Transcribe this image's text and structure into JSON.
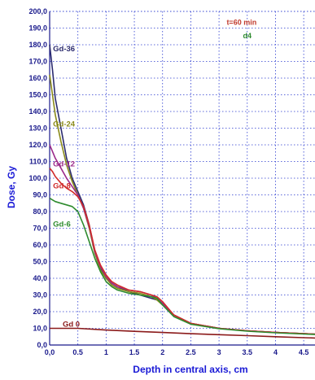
{
  "chart_data": {
    "type": "line",
    "title": "",
    "xlabel": "Depth in central axis, cm",
    "ylabel": "Dose, Gy",
    "xlim": [
      0,
      4.7
    ],
    "ylim": [
      0,
      200
    ],
    "x_ticks": [
      "0,0",
      "0.5",
      "1",
      "1.5",
      "2",
      "2.5",
      "3",
      "3.5",
      "4",
      "4.5"
    ],
    "x_tick_values": [
      0,
      0.5,
      1,
      1.5,
      2,
      2.5,
      3,
      3.5,
      4,
      4.5
    ],
    "y_ticks": [
      "0,0",
      "10,0",
      "20,0",
      "30,0",
      "40,0",
      "50,0",
      "60,0",
      "70,0",
      "80,0",
      "90,0",
      "100,0",
      "110,0",
      "120,0",
      "130,0",
      "140,0",
      "150,0",
      "160,0",
      "170,0",
      "180,0",
      "190,0",
      "200,0"
    ],
    "y_tick_values": [
      0,
      10,
      20,
      30,
      40,
      50,
      60,
      70,
      80,
      90,
      100,
      110,
      120,
      130,
      140,
      150,
      160,
      170,
      180,
      190,
      200
    ],
    "grid": true,
    "annotations": [
      {
        "text": "t=60 min",
        "color": "#c0392b",
        "x": 3.4,
        "y": 192
      },
      {
        "text": "d4",
        "color": "#2e8b2e",
        "x": 3.5,
        "y": 184
      }
    ],
    "series": [
      {
        "name": "Gd-36",
        "color": "#2b2b6e",
        "label_x": 0.06,
        "label_y": 176,
        "x": [
          0,
          0.05,
          0.1,
          0.2,
          0.3,
          0.4,
          0.5,
          0.6,
          0.7,
          0.8,
          0.9,
          1.0,
          1.1,
          1.2,
          1.4,
          1.6,
          1.8,
          1.9,
          2.0,
          2.2,
          2.5,
          3.0,
          3.5,
          4.0,
          4.7
        ],
        "y": [
          180,
          165,
          148,
          130,
          112,
          100,
          92,
          84,
          72,
          56,
          46,
          40,
          37,
          35,
          32,
          30,
          28,
          27,
          25,
          18,
          13,
          10,
          8.5,
          7.5,
          6.5
        ]
      },
      {
        "name": "Gd-24",
        "color": "#8a8a1a",
        "label_x": 0.06,
        "label_y": 131,
        "x": [
          0,
          0.05,
          0.1,
          0.2,
          0.3,
          0.4,
          0.5,
          0.6,
          0.7,
          0.8,
          0.9,
          1.0,
          1.1,
          1.2,
          1.4,
          1.6,
          1.8,
          1.9,
          2.0,
          2.2,
          2.5,
          3.0,
          3.5,
          4.0,
          4.7
        ],
        "y": [
          162,
          150,
          138,
          122,
          108,
          98,
          90,
          82,
          70,
          55,
          45,
          40,
          36,
          34,
          32,
          31,
          29,
          27,
          24,
          18,
          13,
          10,
          8.5,
          7.5,
          6.5
        ]
      },
      {
        "name": "Gd-12",
        "color": "#9b2a8a",
        "label_x": 0.06,
        "label_y": 107,
        "x": [
          0,
          0.05,
          0.1,
          0.2,
          0.3,
          0.4,
          0.5,
          0.6,
          0.7,
          0.8,
          0.9,
          1.0,
          1.1,
          1.2,
          1.4,
          1.6,
          1.8,
          1.9,
          2.0,
          2.2,
          2.5,
          3.0,
          3.5,
          4.0,
          4.7
        ],
        "y": [
          120,
          116,
          112,
          106,
          100,
          95,
          90,
          82,
          71,
          56,
          47,
          41,
          37,
          35,
          33,
          32,
          30,
          28,
          25,
          18,
          13,
          10,
          8.5,
          7.5,
          6.5
        ]
      },
      {
        "name": "Gd-8",
        "color": "#d02b2b",
        "label_x": 0.06,
        "label_y": 94,
        "x": [
          0,
          0.05,
          0.1,
          0.2,
          0.3,
          0.4,
          0.5,
          0.6,
          0.7,
          0.8,
          0.9,
          1.0,
          1.1,
          1.2,
          1.4,
          1.6,
          1.8,
          1.9,
          2.0,
          2.2,
          2.5,
          3.0,
          3.5,
          4.0,
          4.7
        ],
        "y": [
          106,
          104,
          101,
          97,
          94,
          92,
          89,
          83,
          72,
          57,
          48,
          42,
          38,
          36,
          33,
          32,
          30,
          29,
          26,
          18,
          13,
          10,
          8.5,
          7.5,
          6.5
        ]
      },
      {
        "name": "Gd-6",
        "color": "#2e8b2e",
        "label_x": 0.06,
        "label_y": 71,
        "x": [
          0,
          0.05,
          0.1,
          0.2,
          0.3,
          0.4,
          0.5,
          0.6,
          0.7,
          0.8,
          0.9,
          1.0,
          1.1,
          1.2,
          1.4,
          1.6,
          1.8,
          1.9,
          2.0,
          2.2,
          2.5,
          3.0,
          3.5,
          4.0,
          4.7
        ],
        "y": [
          88,
          87,
          86,
          85,
          84,
          83,
          80,
          72,
          62,
          52,
          44,
          38,
          35,
          33,
          31,
          30,
          29,
          28,
          24,
          17,
          12.5,
          9.8,
          8.3,
          7.3,
          6.3
        ]
      },
      {
        "name": "Gd 0",
        "color": "#8b1a1a",
        "label_x": 0.23,
        "label_y": 11,
        "x": [
          0,
          0.5,
          1.0,
          1.5,
          2.0,
          2.5,
          3.0,
          3.5,
          4.0,
          4.5,
          4.7
        ],
        "y": [
          10,
          10,
          9,
          8.2,
          7.5,
          6.8,
          6.2,
          5.6,
          5.0,
          4.4,
          4.2
        ]
      }
    ]
  }
}
